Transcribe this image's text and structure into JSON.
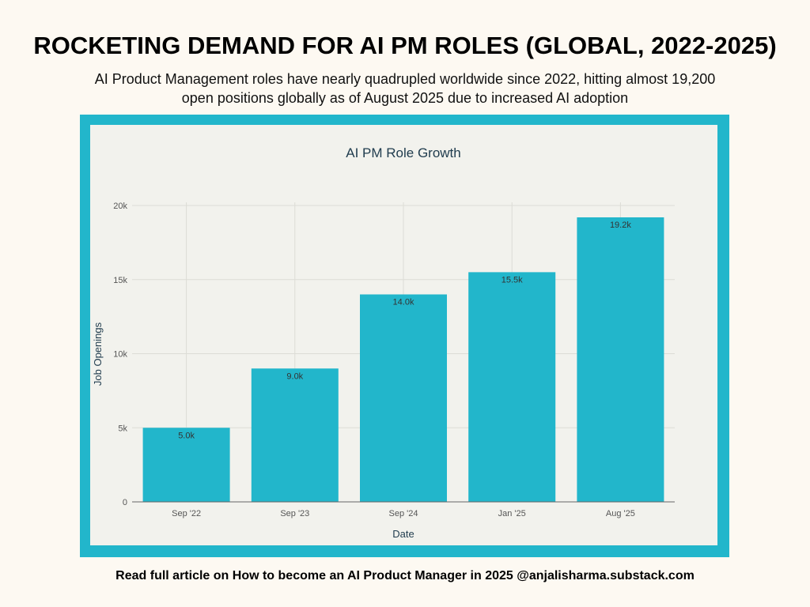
{
  "header": {
    "title": "ROCKETING DEMAND FOR AI PM ROLES (GLOBAL, 2022-2025)",
    "subtitle": "AI Product Management roles have nearly quadrupled worldwide since 2022, hitting almost 19,200 open positions globally as of August 2025 due to increased AI adoption"
  },
  "footer": "Read full article on How to become an AI Product Manager in 2025 @anjalisharma.substack.com",
  "colors": {
    "bar": "#22b6cb",
    "frame": "#22b6cb",
    "panel": "#f2f2ed"
  },
  "chart_data": {
    "type": "bar",
    "title": "AI PM Role Growth",
    "xlabel": "Date",
    "ylabel": "Job Openings",
    "categories": [
      "Sep '22",
      "Sep '23",
      "Sep '24",
      "Jan '25",
      "Aug '25"
    ],
    "values": [
      5000,
      9000,
      14000,
      15500,
      19200
    ],
    "data_labels": [
      "5.0k",
      "9.0k",
      "14.0k",
      "15.5k",
      "19.2k"
    ],
    "ylim": [
      0,
      20000
    ],
    "yticks": [
      0,
      5000,
      10000,
      15000,
      20000
    ],
    "ytick_labels": [
      "0",
      "5k",
      "10k",
      "15k",
      "20k"
    ],
    "grid": true
  }
}
